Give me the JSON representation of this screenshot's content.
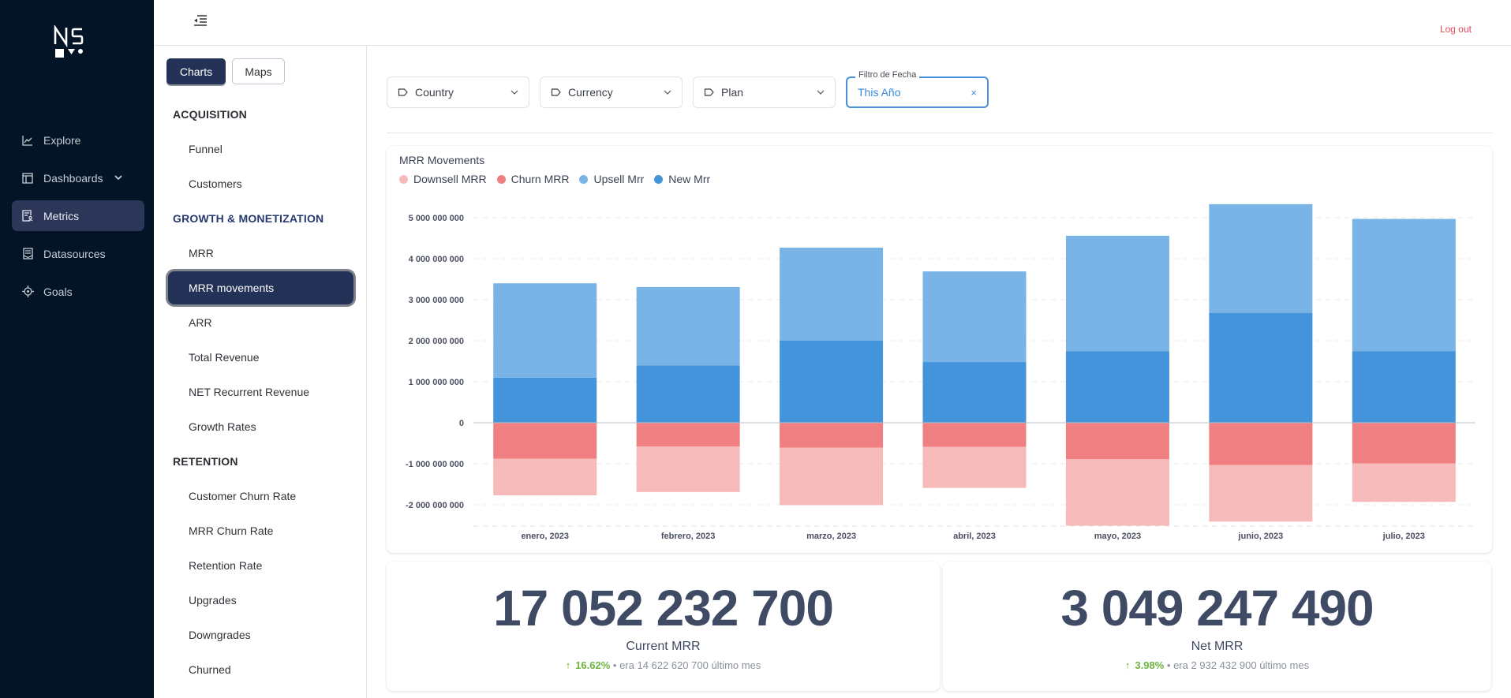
{
  "brand": {
    "logo_text": "NS"
  },
  "sidebar": {
    "items": [
      {
        "label": "Explore",
        "icon": "chart-line-icon"
      },
      {
        "label": "Dashboards",
        "icon": "dashboard-icon",
        "has_submenu": true
      },
      {
        "label": "Metrics",
        "icon": "metrics-icon",
        "active": true
      },
      {
        "label": "Datasources",
        "icon": "datasource-icon"
      },
      {
        "label": "Goals",
        "icon": "target-icon"
      }
    ]
  },
  "topbar": {
    "logout_label": "Log out"
  },
  "metrics_menu": {
    "tabs": [
      {
        "label": "Charts",
        "active": true
      },
      {
        "label": "Maps",
        "active": false
      }
    ],
    "sections": [
      {
        "heading": "ACQUISITION",
        "items": [
          "Funnel",
          "Customers"
        ]
      },
      {
        "heading": "GROWTH & MONETIZATION",
        "items": [
          "MRR",
          "MRR movements",
          "ARR",
          "Total Revenue",
          "NET Recurrent Revenue",
          "Growth Rates"
        ]
      },
      {
        "heading": "RETENTION",
        "items": [
          "Customer Churn Rate",
          "MRR Churn Rate",
          "Retention Rate",
          "Upgrades",
          "Downgrades",
          "Churned"
        ]
      }
    ],
    "active_item": "MRR movements"
  },
  "filters": {
    "country": "Country",
    "currency": "Currency",
    "plan": "Plan",
    "date_label": "Filtro de Fecha",
    "date_value": "This Año",
    "clear_symbol": "×"
  },
  "colors": {
    "downsell": "#f7babb",
    "churn": "#f07f81",
    "upsell": "#7ab3e5",
    "new": "#4394db",
    "positive": "#6db33f",
    "logout": "#e8475a"
  },
  "chart_data": {
    "type": "bar",
    "stacked": true,
    "title": "MRR Movements",
    "categories": [
      "enero, 2023",
      "febrero, 2023",
      "marzo, 2023",
      "abril, 2023",
      "mayo, 2023",
      "junio, 2023",
      "julio, 2023"
    ],
    "series": [
      {
        "name": "Downsell MRR",
        "color": "#f7babb",
        "values": [
          -890000000,
          -1110000000,
          -1400000000,
          -1000000000,
          -1620000000,
          -1380000000,
          -940000000
        ]
      },
      {
        "name": "Churn MRR",
        "color": "#f07f81",
        "values": [
          -880000000,
          -580000000,
          -610000000,
          -590000000,
          -890000000,
          -1030000000,
          -990000000
        ]
      },
      {
        "name": "Upsell Mrr",
        "color": "#7ab3e5",
        "values": [
          2300000000,
          1910000000,
          2270000000,
          2210000000,
          2820000000,
          2650000000,
          3230000000
        ]
      },
      {
        "name": "New Mrr",
        "color": "#4394db",
        "values": [
          1100000000,
          1400000000,
          2000000000,
          1480000000,
          1740000000,
          2680000000,
          1740000000
        ]
      }
    ],
    "yticks": [
      5000000000,
      4000000000,
      3000000000,
      2000000000,
      1000000000,
      0,
      -1000000000,
      -2000000000
    ],
    "ytick_labels": [
      "5 000 000 000",
      "4 000 000 000",
      "3 000 000 000",
      "2 000 000 000",
      "1 000 000 000",
      "0",
      "-1 000 000 000",
      "-2 000 000 000"
    ],
    "ylim": [
      -2500000000,
      5300000000
    ],
    "grid": true,
    "legend": "top-left",
    "xlabel": "",
    "ylabel": ""
  },
  "kpis": [
    {
      "value": "17 052 232 700",
      "label": "Current MRR",
      "change": "16.62%",
      "previous_text": "• era 14 622 620 700 último mes",
      "trend": "up"
    },
    {
      "value": "3 049 247 490",
      "label": "Net MRR",
      "change": "3.98%",
      "previous_text": "• era 2 932 432 900 último mes",
      "trend": "up"
    }
  ],
  "icons": {
    "trend_up": "↑"
  }
}
